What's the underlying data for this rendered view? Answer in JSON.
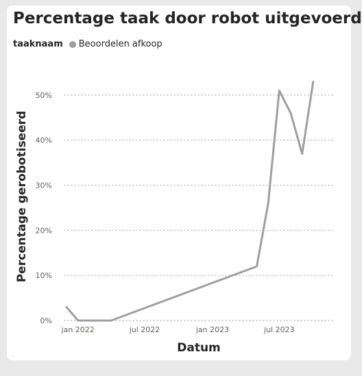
{
  "chart_data": {
    "type": "line",
    "title": "Percentage taak door robot uitgevoerd",
    "legend": {
      "title": "taaknaam",
      "placement": "top-left"
    },
    "xlabel": "Datum",
    "ylabel": "Percentage gerobotiseerd",
    "x_ticks": [
      {
        "date": "2022-01-01",
        "label": "jan 2022"
      },
      {
        "date": "2022-07-01",
        "label": "jul 2022"
      },
      {
        "date": "2023-01-01",
        "label": "jan 2023"
      },
      {
        "date": "2023-07-01",
        "label": "jul 2023"
      }
    ],
    "xlim": [
      "2021-12-01",
      "2023-11-15"
    ],
    "ylim": [
      0,
      0.55
    ],
    "y_ticks": [
      {
        "value": 0,
        "label": "0%"
      },
      {
        "value": 0.1,
        "label": "10%"
      },
      {
        "value": 0.2,
        "label": "20%"
      },
      {
        "value": 0.3,
        "label": "30%"
      },
      {
        "value": 0.4,
        "label": "40%"
      },
      {
        "value": 0.5,
        "label": "50%"
      }
    ],
    "grid": "horizontal-dotted",
    "series": [
      {
        "name": "Beoordelen afkoop",
        "color": "#9d9ea2",
        "points": [
          {
            "x": "2021-12-01",
            "y": 0.03
          },
          {
            "x": "2022-01-01",
            "y": 0.0
          },
          {
            "x": "2022-04-01",
            "y": 0.0
          },
          {
            "x": "2023-05-01",
            "y": 0.12
          },
          {
            "x": "2023-06-01",
            "y": 0.26
          },
          {
            "x": "2023-07-01",
            "y": 0.51
          },
          {
            "x": "2023-08-01",
            "y": 0.46
          },
          {
            "x": "2023-09-01",
            "y": 0.37
          },
          {
            "x": "2023-10-01",
            "y": 0.53
          }
        ]
      }
    ]
  }
}
